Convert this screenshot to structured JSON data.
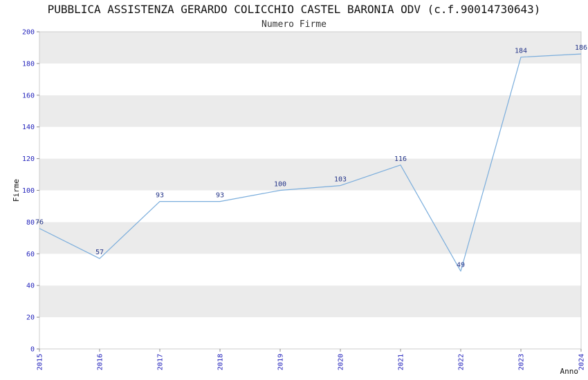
{
  "page": {
    "title": "PUBBLICA ASSISTENZA GERARDO COLICCHIO CASTEL BARONIA ODV (c.f.90014730643)",
    "subtitle": "Numero Firme"
  },
  "chart_data": {
    "type": "line",
    "title": "PUBBLICA ASSISTENZA GERARDO COLICCHIO CASTEL BARONIA ODV (c.f.90014730643)",
    "subtitle": "Numero Firme",
    "x": [
      "2015",
      "2016",
      "2017",
      "2018",
      "2019",
      "2020",
      "2021",
      "2022",
      "2023",
      "2024"
    ],
    "series": [
      {
        "name": "Numero Firme",
        "values": [
          76,
          57,
          93,
          93,
          100,
          103,
          116,
          49,
          184,
          186
        ]
      }
    ],
    "xlabel": "Anno",
    "ylabel": "Firme",
    "ylim": [
      0,
      200
    ],
    "ytick_step": 20,
    "legend_position": "none",
    "grid": "horizontal-bands",
    "colors": {
      "line": "#7aaddc",
      "band": "#ebebeb",
      "plot_border": "#cccccc",
      "tick_mark": "#8a8a8a",
      "tick_label": "#2222bb",
      "value_label": "#223388",
      "axis_label": "#111111"
    }
  }
}
